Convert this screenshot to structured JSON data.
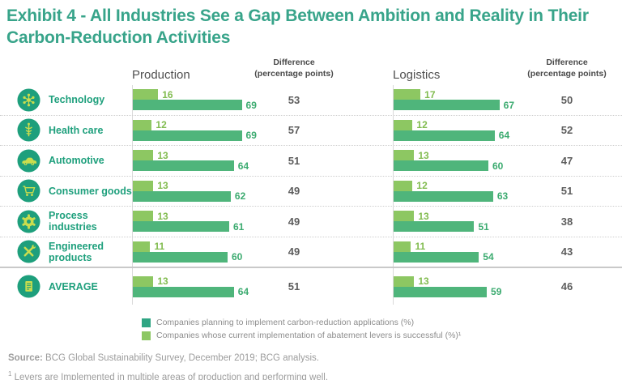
{
  "title_line1": "Exhibit 4 - All Industries See a Gap Between Ambition and Reality in Their",
  "title_line2": "Carbon-Reduction Activities",
  "header": {
    "production": "Production",
    "logistics": "Logistics",
    "difference_line1": "Difference",
    "difference_line2": "(percentage points)"
  },
  "chart_data": {
    "type": "bar",
    "orientation": "horizontal",
    "title": "Exhibit 4 - All Industries See a Gap Between Ambition and Reality in Their Carbon-Reduction Activities",
    "unit": "%",
    "xlim": [
      0,
      100
    ],
    "legend_position": "bottom",
    "categories": [
      "Technology",
      "Health care",
      "Automotive",
      "Consumer goods",
      "Process industries",
      "Engineered products",
      "AVERAGE"
    ],
    "icons": [
      "technology-network-icon",
      "health-care-caduceus-icon",
      "automotive-car-icon",
      "consumer-goods-cart-icon",
      "process-industries-gear-icon",
      "engineered-products-tools-icon",
      "average-document-icon"
    ],
    "groups": [
      {
        "name": "Production",
        "series": [
          {
            "key": "successful",
            "name": "Companies whose current implementation of abatement levers is successful (%)",
            "color": "#8dc762",
            "values": [
              16,
              12,
              13,
              13,
              13,
              11,
              13
            ]
          },
          {
            "key": "planning",
            "name": "Companies planning to implement carbon-reduction applications (%)",
            "color": "#4fb57b",
            "values": [
              69,
              69,
              64,
              62,
              61,
              60,
              64
            ]
          }
        ],
        "difference": [
          53,
          57,
          51,
          49,
          49,
          49,
          51
        ]
      },
      {
        "name": "Logistics",
        "series": [
          {
            "key": "successful",
            "name": "Companies whose current implementation of abatement levers is successful (%)",
            "color": "#8dc762",
            "values": [
              17,
              12,
              13,
              12,
              13,
              11,
              13
            ]
          },
          {
            "key": "planning",
            "name": "Companies planning to implement carbon-reduction applications (%)",
            "color": "#4fb57b",
            "values": [
              67,
              64,
              60,
              63,
              51,
              54,
              59
            ]
          }
        ],
        "difference": [
          50,
          52,
          47,
          51,
          38,
          43,
          46
        ]
      }
    ]
  },
  "legend": [
    {
      "key": "planning",
      "label": "Companies planning to implement carbon-reduction applications (%)",
      "color": "#2fa583"
    },
    {
      "key": "successful",
      "label": "Companies whose current implementation of abatement levers is successful (%)¹",
      "color": "#8cc763"
    }
  ],
  "footer": {
    "source_label": "Source:",
    "source_text": "BCG Global Sustainability Survey, December 2019; BCG analysis.",
    "footnote_mark": "1",
    "footnote_text": "Levers are Implemented in multiple areas of production and performing well."
  },
  "colors": {
    "title": "#38a48a",
    "accent_teal": "#1fa07d",
    "icon_circle": "#1e9f7c",
    "icon_glyph": "#cadd4e",
    "bar_dark": "#4fb57b",
    "bar_light": "#8dc762",
    "difference_text": "#5d5d5d",
    "legend_text": "#8d8d8d",
    "footer_text": "#9c9c9c"
  }
}
